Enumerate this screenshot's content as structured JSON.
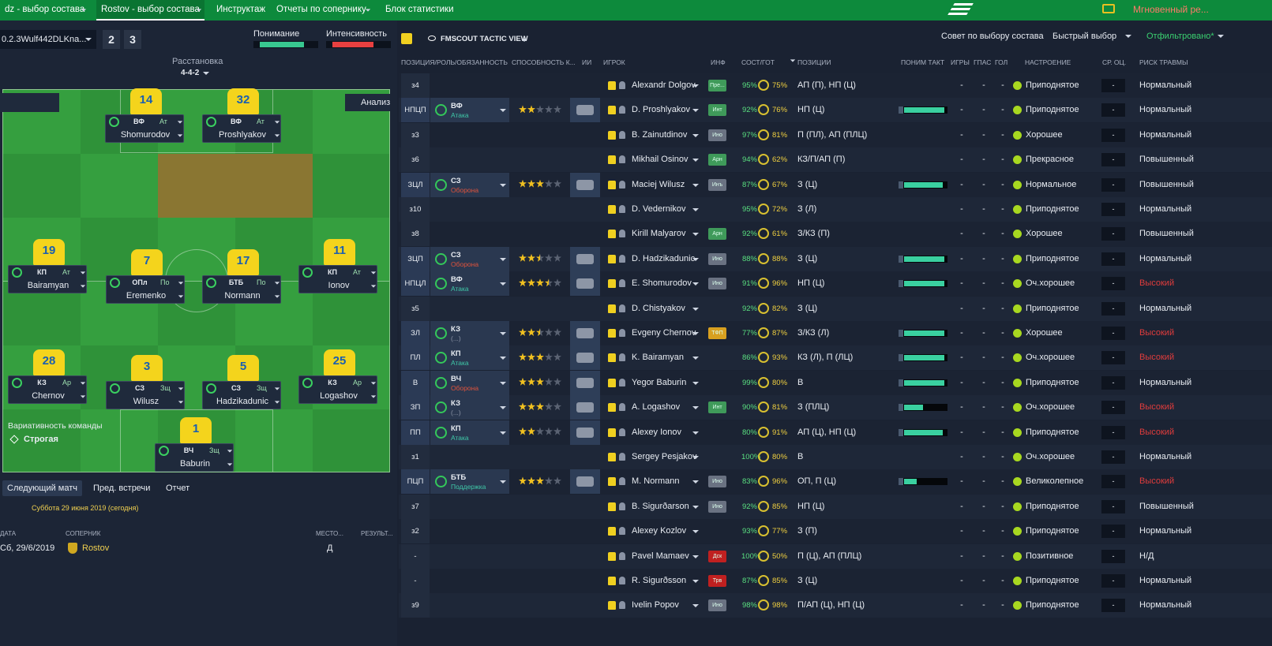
{
  "topbar": {
    "tabs": [
      "dz - выбор состава",
      "Rostov - выбор состава",
      "Инструктаж",
      "Отчеты по сопернику",
      "Блок статистики"
    ],
    "active": 1,
    "instant": "Мгновенный ре..."
  },
  "tactic": {
    "name": "0.2.3Wulf442DLKna...",
    "num1": "2",
    "num2": "3",
    "understanding_label": "Понимание",
    "intensity_label": "Интенсивность",
    "understanding": 75,
    "intensity": 70,
    "formation_label": "Расстановка",
    "formation": "4-4-2",
    "analysis": "Анализ",
    "variability_label": "Вариативность команды",
    "variability": "Строгая"
  },
  "pitch_players": [
    {
      "number": "14",
      "role": "ВФ",
      "duty": "Ат",
      "name": "Shomurodov"
    },
    {
      "number": "32",
      "role": "ВФ",
      "duty": "Ат",
      "name": "Proshlyakov"
    },
    {
      "number": "19",
      "role": "КП",
      "duty": "Ат",
      "name": "Bairamyan"
    },
    {
      "number": "7",
      "role": "ОПл",
      "duty": "По",
      "name": "Eremenko"
    },
    {
      "number": "17",
      "role": "БТБ",
      "duty": "По",
      "name": "Normann"
    },
    {
      "number": "11",
      "role": "КП",
      "duty": "Ат",
      "name": "Ionov"
    },
    {
      "number": "28",
      "role": "КЗ",
      "duty": "Ар",
      "name": "Chernov"
    },
    {
      "number": "3",
      "role": "СЗ",
      "duty": "Зщ",
      "name": "Wilusz"
    },
    {
      "number": "5",
      "role": "СЗ",
      "duty": "Зщ",
      "name": "Hadzikadunic"
    },
    {
      "number": "25",
      "role": "КЗ",
      "duty": "Ар",
      "name": "Logashov"
    },
    {
      "number": "1",
      "role": "ВЧ",
      "duty": "Зщ",
      "name": "Baburin"
    }
  ],
  "match": {
    "tabs": [
      "Следующий матч",
      "Пред. встречи",
      "Отчет"
    ],
    "date_line": "Суббота 29 июня 2019 (сегодня)",
    "headers": [
      "ДАТА",
      "СОПЕРНИК",
      "МЕСТО...",
      "РЕЗУЛЬТ..."
    ],
    "row": {
      "date": "Сб, 29/6/2019",
      "opponent": "Rostov",
      "venue": "Д"
    }
  },
  "squad": {
    "view": "FMSCOUT TACTIC VIEW",
    "buttons": [
      "Совет по выбору состава",
      "Быстрый выбор",
      "Отфильтровано*"
    ],
    "headers": [
      "ПОЗИЦИЯ/РОЛЬ/ОБЯЗАННОСТЬ",
      "СПОСОБНОСТЬ К...",
      "ИИ",
      "ИГРОК",
      "ИНФ",
      "СОСТ/ГОТ",
      "ПОЗИЦИИ",
      "ПОНИМ ТАКТ",
      "ИГРЫ",
      "ГПАС",
      "ГОЛ",
      "НАСТРОЕНИЕ",
      "СР. ОЦ.",
      "РИСК ТРАВМЫ"
    ],
    "rows": [
      {
        "pos": "з4",
        "name": "Alexandr Dolgov",
        "info": "Пре...",
        "info_color": "#3f9a5a",
        "cond": "95%",
        "sharp": "75%",
        "positions": "АП (П), НП (Ц)",
        "games": "-",
        "passes": "-",
        "goals": "-",
        "morale": "Приподнятое",
        "avg": "-",
        "risk": "Нормальный"
      },
      {
        "pos": "НПЦП",
        "role": "ВФ",
        "duty": "Атака",
        "duty_color": "#3fc8a8",
        "stars": 2,
        "name": "D. Proshlyakov",
        "info": "Инт",
        "info_color": "#3f9a5a",
        "cond": "92%",
        "sharp": "76%",
        "positions": "НП (Ц)",
        "familiarity": 95,
        "games": "-",
        "passes": "-",
        "goals": "-",
        "morale": "Приподнятое",
        "avg": "-",
        "risk": "Нормальный"
      },
      {
        "pos": "з3",
        "name": "B. Zainutdinov",
        "info": "Ино",
        "info_color": "#6a7282",
        "cond": "97%",
        "sharp": "81%",
        "positions": "П (ПЛ), АП (ПЛЦ)",
        "games": "-",
        "passes": "-",
        "goals": "-",
        "morale": "Хорошее",
        "avg": "-",
        "risk": "Нормальный"
      },
      {
        "pos": "з6",
        "name": "Mikhail Osinov",
        "info": "Арн",
        "info_color": "#3f9a5a",
        "cond": "94%",
        "sharp": "62%",
        "positions": "КЗ/П/АП (П)",
        "games": "-",
        "passes": "-",
        "goals": "-",
        "morale": "Прекрасное",
        "avg": "-",
        "risk": "Повышенный"
      },
      {
        "pos": "ЗЦЛ",
        "role": "СЗ",
        "duty": "Оборона",
        "duty_color": "#e0533c",
        "stars": 3,
        "name": "Maciej Wilusz",
        "info": "Инъ",
        "info_color": "#6a7282",
        "cond": "87%",
        "sharp": "67%",
        "positions": "З (Ц)",
        "familiarity": 90,
        "games": "-",
        "passes": "-",
        "goals": "-",
        "morale": "Нормальное",
        "avg": "-",
        "risk": "Повышенный"
      },
      {
        "pos": "з10",
        "name": "D. Vedernikov",
        "cond": "95%",
        "sharp": "72%",
        "positions": "З (Л)",
        "games": "-",
        "passes": "-",
        "goals": "-",
        "morale": "Приподнятое",
        "avg": "-",
        "risk": "Нормальный"
      },
      {
        "pos": "з8",
        "name": "Kirill Malyarov",
        "info": "Арн",
        "info_color": "#3f9a5a",
        "cond": "92%",
        "sharp": "61%",
        "positions": "З/КЗ (П)",
        "games": "-",
        "passes": "-",
        "goals": "-",
        "morale": "Хорошее",
        "avg": "-",
        "risk": "Повышенный"
      },
      {
        "pos": "ЗЦП",
        "role": "СЗ",
        "duty": "Оборона",
        "duty_color": "#e0533c",
        "stars": 2.5,
        "name": "D. Hadzikadunic",
        "info": "Ино",
        "info_color": "#6a7282",
        "cond": "88%",
        "sharp": "88%",
        "positions": "З (Ц)",
        "familiarity": 95,
        "games": "-",
        "passes": "-",
        "goals": "-",
        "morale": "Приподнятое",
        "avg": "-",
        "risk": "Нормальный"
      },
      {
        "pos": "НПЦЛ",
        "role": "ВФ",
        "duty": "Атака",
        "duty_color": "#3fc8a8",
        "stars": 3.5,
        "name": "E. Shomurodov",
        "info": "Ино",
        "info_color": "#6a7282",
        "cond": "91%",
        "sharp": "96%",
        "positions": "НП (Ц)",
        "familiarity": 95,
        "games": "-",
        "passes": "-",
        "goals": "-",
        "morale": "Оч.хорошее",
        "avg": "-",
        "risk": "Высокий",
        "risk_color": "#e03c3c"
      },
      {
        "pos": "з5",
        "name": "D. Chistyakov",
        "cond": "92%",
        "sharp": "82%",
        "positions": "З (Ц)",
        "games": "-",
        "passes": "-",
        "goals": "-",
        "morale": "Приподнятое",
        "avg": "-",
        "risk": "Нормальный"
      },
      {
        "pos": "ЗЛ",
        "role": "КЗ",
        "duty": "(...)",
        "duty_color": "#8a93a5",
        "stars": 2.5,
        "name": "Evgeny Chernov",
        "info": "ТФП",
        "info_color": "#d8a020",
        "cond": "77%",
        "sharp": "87%",
        "positions": "З/КЗ (Л)",
        "familiarity": 95,
        "games": "-",
        "passes": "-",
        "goals": "-",
        "morale": "Хорошее",
        "avg": "-",
        "risk": "Высокий",
        "risk_color": "#e03c3c"
      },
      {
        "pos": "ПЛ",
        "role": "КП",
        "duty": "Атака",
        "duty_color": "#3fc8a8",
        "stars": 3,
        "name": "K. Bairamyan",
        "cond": "86%",
        "sharp": "93%",
        "positions": "КЗ (Л), П (ЛЦ)",
        "familiarity": 95,
        "games": "-",
        "passes": "-",
        "goals": "-",
        "morale": "Оч.хорошее",
        "avg": "-",
        "risk": "Высокий",
        "risk_color": "#e03c3c"
      },
      {
        "pos": "В",
        "role": "ВЧ",
        "duty": "Оборона",
        "duty_color": "#e0533c",
        "stars": 3,
        "name": "Yegor Baburin",
        "cond": "99%",
        "sharp": "80%",
        "positions": "В",
        "familiarity": 95,
        "games": "-",
        "passes": "-",
        "goals": "-",
        "morale": "Приподнятое",
        "avg": "-",
        "risk": "Нормальный"
      },
      {
        "pos": "ЗП",
        "role": "КЗ",
        "duty": "(...)",
        "duty_color": "#8a93a5",
        "stars": 3,
        "name": "A. Logashov",
        "info": "Инт",
        "info_color": "#3f9a5a",
        "cond": "90%",
        "sharp": "81%",
        "positions": "З (ПЛЦ)",
        "familiarity": 45,
        "games": "-",
        "passes": "-",
        "goals": "-",
        "morale": "Оч.хорошее",
        "avg": "-",
        "risk": "Высокий",
        "risk_color": "#e03c3c"
      },
      {
        "pos": "ПП",
        "role": "КП",
        "duty": "Атака",
        "duty_color": "#3fc8a8",
        "stars": 2,
        "name": "Alexey Ionov",
        "cond": "80%",
        "sharp": "91%",
        "positions": "АП (Ц), НП (Ц)",
        "familiarity": 90,
        "games": "-",
        "passes": "-",
        "goals": "-",
        "morale": "Приподнятое",
        "avg": "-",
        "risk": "Высокий",
        "risk_color": "#e03c3c"
      },
      {
        "pos": "з1",
        "name": "Sergey Pesjakov",
        "cond": "100%",
        "sharp": "80%",
        "positions": "В",
        "games": "-",
        "passes": "-",
        "goals": "-",
        "morale": "Оч.хорошее",
        "avg": "-",
        "risk": "Нормальный"
      },
      {
        "pos": "ПЦП",
        "role": "БТБ",
        "duty": "Поддержка",
        "duty_color": "#3fc8a8",
        "stars": 3,
        "name": "M. Normann",
        "info": "Ино",
        "info_color": "#6a7282",
        "cond": "83%",
        "sharp": "96%",
        "positions": "ОП, П (Ц)",
        "familiarity": 30,
        "games": "-",
        "passes": "-",
        "goals": "-",
        "morale": "Великолепное",
        "avg": "-",
        "risk": "Высокий",
        "risk_color": "#e03c3c"
      },
      {
        "pos": "з7",
        "name": "B. Sigurðarson",
        "info": "Ино",
        "info_color": "#6a7282",
        "cond": "92%",
        "sharp": "85%",
        "positions": "НП (Ц)",
        "games": "-",
        "passes": "-",
        "goals": "-",
        "morale": "Приподнятое",
        "avg": "-",
        "risk": "Повышенный"
      },
      {
        "pos": "з2",
        "name": "Alexey Kozlov",
        "cond": "93%",
        "sharp": "77%",
        "positions": "З (П)",
        "games": "-",
        "passes": "-",
        "goals": "-",
        "morale": "Приподнятое",
        "avg": "-",
        "risk": "Нормальный"
      },
      {
        "pos": "-",
        "name": "Pavel Mamaev",
        "info": "Дск",
        "info_color": "#c02020",
        "cond": "100%",
        "sharp": "50%",
        "positions": "П (Ц), АП (ПЛЦ)",
        "games": "-",
        "passes": "-",
        "goals": "-",
        "morale": "Позитивное",
        "avg": "-",
        "risk": "Н/Д"
      },
      {
        "pos": "-",
        "name": "R. Sigurðsson",
        "info": "Трв",
        "info_color": "#c02020",
        "cond": "87%",
        "sharp": "85%",
        "positions": "З (Ц)",
        "games": "-",
        "passes": "-",
        "goals": "-",
        "morale": "Приподнятое",
        "avg": "-",
        "risk": "Нормальный"
      },
      {
        "pos": "з9",
        "name": "Ivelin Popov",
        "info": "Ино",
        "info_color": "#6a7282",
        "cond": "98%",
        "sharp": "98%",
        "positions": "П/АП (Ц), НП (Ц)",
        "games": "-",
        "passes": "-",
        "goals": "-",
        "morale": "Приподнятое",
        "avg": "-",
        "risk": "Нормальный"
      }
    ]
  }
}
